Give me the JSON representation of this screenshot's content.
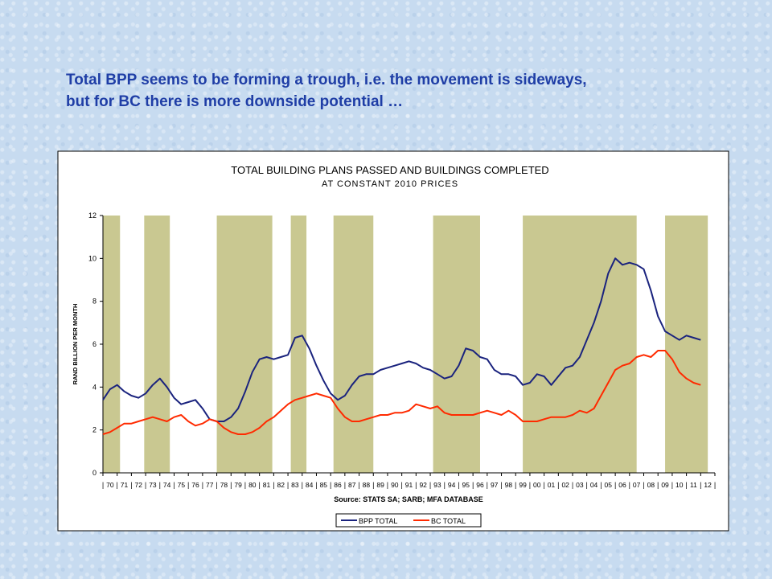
{
  "slide": {
    "title_line1": "Total BPP seems to be forming a trough, i.e. the movement is sideways,",
    "title_line2": "but for BC there is more downside potential …"
  },
  "chart_data": {
    "type": "line",
    "title": "TOTAL BUILDING PLANS PASSED AND BUILDINGS COMPLETED",
    "subtitle": "AT CONSTANT 2010 PRICES",
    "ylabel": "RAND BILLION PER MONTH",
    "source": "Source: STATS SA; SARB; MFA DATABASE",
    "ylim": [
      0,
      12
    ],
    "xlim": [
      1970,
      2013
    ],
    "yticks": [
      0,
      2,
      4,
      6,
      8,
      10,
      12
    ],
    "xtick_labels": [
      "70",
      "71",
      "72",
      "73",
      "74",
      "75",
      "76",
      "77",
      "78",
      "79",
      "80",
      "81",
      "82",
      "83",
      "84",
      "85",
      "86",
      "87",
      "88",
      "89",
      "90",
      "91",
      "92",
      "93",
      "94",
      "95",
      "96",
      "97",
      "98",
      "99",
      "00",
      "01",
      "02",
      "03",
      "04",
      "05",
      "06",
      "07",
      "08",
      "09",
      "10",
      "11",
      "12"
    ],
    "shaded_periods": [
      [
        1970.0,
        1971.2
      ],
      [
        1972.9,
        1974.7
      ],
      [
        1978.0,
        1981.9
      ],
      [
        1983.2,
        1984.3
      ],
      [
        1986.2,
        1989.0
      ],
      [
        1993.2,
        1996.5
      ],
      [
        1999.5,
        2007.5
      ],
      [
        2009.5,
        2012.5
      ]
    ],
    "shade_color": "#c9c891",
    "series": [
      {
        "name": "BPP TOTAL",
        "color": "#1a237e",
        "x": [
          1970.0,
          1970.5,
          1971.0,
          1971.5,
          1972.0,
          1972.5,
          1973.0,
          1973.5,
          1974.0,
          1974.5,
          1975.0,
          1975.5,
          1976.0,
          1976.5,
          1977.0,
          1977.5,
          1978.0,
          1978.5,
          1979.0,
          1979.5,
          1980.0,
          1980.5,
          1981.0,
          1981.5,
          1982.0,
          1982.5,
          1983.0,
          1983.5,
          1984.0,
          1984.5,
          1985.0,
          1985.5,
          1986.0,
          1986.5,
          1987.0,
          1987.5,
          1988.0,
          1988.5,
          1989.0,
          1989.5,
          1990.0,
          1990.5,
          1991.0,
          1991.5,
          1992.0,
          1992.5,
          1993.0,
          1993.5,
          1994.0,
          1994.5,
          1995.0,
          1995.5,
          1996.0,
          1996.5,
          1997.0,
          1997.5,
          1998.0,
          1998.5,
          1999.0,
          1999.5,
          2000.0,
          2000.5,
          2001.0,
          2001.5,
          2002.0,
          2002.5,
          2003.0,
          2003.5,
          2004.0,
          2004.5,
          2005.0,
          2005.5,
          2006.0,
          2006.5,
          2007.0,
          2007.5,
          2008.0,
          2008.5,
          2009.0,
          2009.5,
          2010.0,
          2010.5,
          2011.0,
          2011.5,
          2012.0
        ],
        "values": [
          3.4,
          3.9,
          4.1,
          3.8,
          3.6,
          3.5,
          3.7,
          4.1,
          4.4,
          4.0,
          3.5,
          3.2,
          3.3,
          3.4,
          3.0,
          2.5,
          2.4,
          2.4,
          2.6,
          3.0,
          3.8,
          4.7,
          5.3,
          5.4,
          5.3,
          5.4,
          5.5,
          6.3,
          6.4,
          5.8,
          5.0,
          4.3,
          3.7,
          3.4,
          3.6,
          4.1,
          4.5,
          4.6,
          4.6,
          4.8,
          4.9,
          5.0,
          5.1,
          5.2,
          5.1,
          4.9,
          4.8,
          4.6,
          4.4,
          4.5,
          5.0,
          5.8,
          5.7,
          5.4,
          5.3,
          4.8,
          4.6,
          4.6,
          4.5,
          4.1,
          4.2,
          4.6,
          4.5,
          4.1,
          4.5,
          4.9,
          5.0,
          5.4,
          6.2,
          7.0,
          8.0,
          9.3,
          10.0,
          9.7,
          9.8,
          9.7,
          9.5,
          8.5,
          7.3,
          6.6,
          6.4,
          6.2,
          6.4,
          6.3,
          6.2
        ]
      },
      {
        "name": "BC TOTAL",
        "color": "#ff2a00",
        "x": [
          1970.0,
          1970.5,
          1971.0,
          1971.5,
          1972.0,
          1972.5,
          1973.0,
          1973.5,
          1974.0,
          1974.5,
          1975.0,
          1975.5,
          1976.0,
          1976.5,
          1977.0,
          1977.5,
          1978.0,
          1978.5,
          1979.0,
          1979.5,
          1980.0,
          1980.5,
          1981.0,
          1981.5,
          1982.0,
          1982.5,
          1983.0,
          1983.5,
          1984.0,
          1984.5,
          1985.0,
          1985.5,
          1986.0,
          1986.5,
          1987.0,
          1987.5,
          1988.0,
          1988.5,
          1989.0,
          1989.5,
          1990.0,
          1990.5,
          1991.0,
          1991.5,
          1992.0,
          1992.5,
          1993.0,
          1993.5,
          1994.0,
          1994.5,
          1995.0,
          1995.5,
          1996.0,
          1996.5,
          1997.0,
          1997.5,
          1998.0,
          1998.5,
          1999.0,
          1999.5,
          2000.0,
          2000.5,
          2001.0,
          2001.5,
          2002.0,
          2002.5,
          2003.0,
          2003.5,
          2004.0,
          2004.5,
          2005.0,
          2005.5,
          2006.0,
          2006.5,
          2007.0,
          2007.5,
          2008.0,
          2008.5,
          2009.0,
          2009.5,
          2010.0,
          2010.5,
          2011.0,
          2011.5,
          2012.0
        ],
        "values": [
          1.8,
          1.9,
          2.1,
          2.3,
          2.3,
          2.4,
          2.5,
          2.6,
          2.5,
          2.4,
          2.6,
          2.7,
          2.4,
          2.2,
          2.3,
          2.5,
          2.4,
          2.1,
          1.9,
          1.8,
          1.8,
          1.9,
          2.1,
          2.4,
          2.6,
          2.9,
          3.2,
          3.4,
          3.5,
          3.6,
          3.7,
          3.6,
          3.5,
          3.0,
          2.6,
          2.4,
          2.4,
          2.5,
          2.6,
          2.7,
          2.7,
          2.8,
          2.8,
          2.9,
          3.2,
          3.1,
          3.0,
          3.1,
          2.8,
          2.7,
          2.7,
          2.7,
          2.7,
          2.8,
          2.9,
          2.8,
          2.7,
          2.9,
          2.7,
          2.4,
          2.4,
          2.4,
          2.5,
          2.6,
          2.6,
          2.6,
          2.7,
          2.9,
          2.8,
          3.0,
          3.6,
          4.2,
          4.8,
          5.0,
          5.1,
          5.4,
          5.5,
          5.4,
          5.7,
          5.7,
          5.3,
          4.7,
          4.4,
          4.2,
          4.1
        ]
      }
    ]
  }
}
